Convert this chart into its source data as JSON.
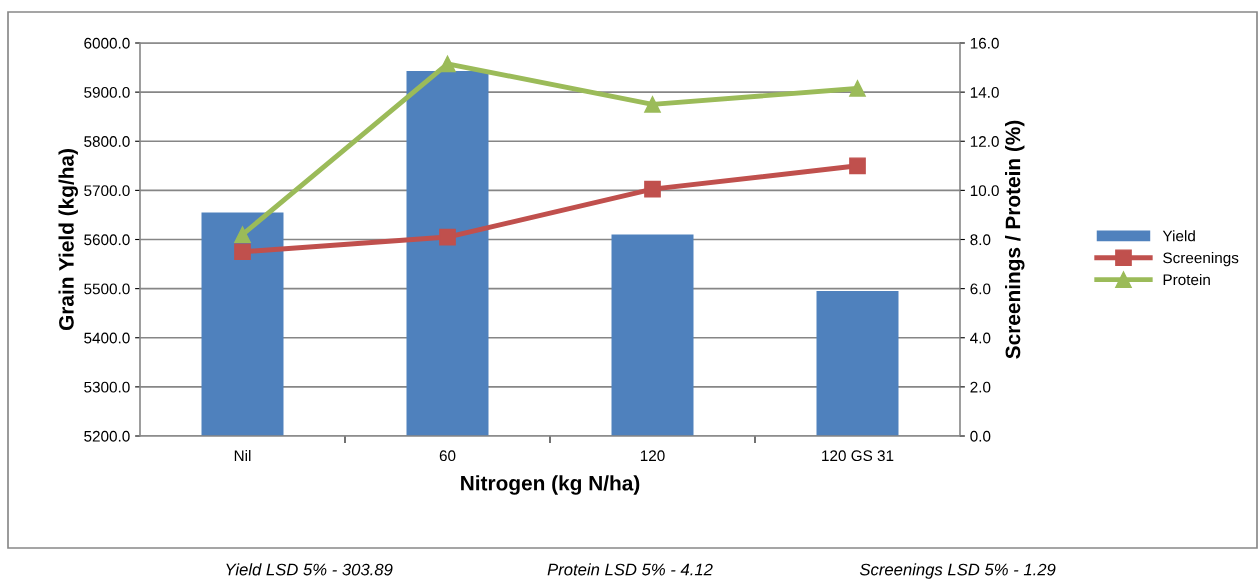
{
  "chart_data": {
    "type": "bar",
    "xlabel": "Nitrogen (kg N/ha)",
    "ylabel": "Grain Yield (kg/ha)",
    "y2label": "Screenings / Protein (%)",
    "categories": [
      "Nil",
      "60",
      "120",
      "120 GS 31"
    ],
    "series": [
      {
        "name": "Yield",
        "color": "#4f81bd",
        "values": [
          5655,
          5943,
          5610,
          5495
        ]
      },
      {
        "name": "Screenings",
        "type": "line",
        "axis": "y2",
        "marker": "square",
        "color": "#c0504d",
        "values": [
          7.5,
          8.1,
          10.05,
          11.0
        ]
      },
      {
        "name": "Protein",
        "type": "line",
        "axis": "y2",
        "marker": "triangle",
        "color": "#9bbb59",
        "values": [
          8.2,
          15.15,
          13.5,
          14.15
        ]
      }
    ],
    "ylim": [
      5200,
      6000
    ],
    "yticks": [
      {
        "value": 5200,
        "label": "5200.0"
      },
      {
        "value": 5300,
        "label": "5300.0"
      },
      {
        "value": 5400,
        "label": "5400.0"
      },
      {
        "value": 5500,
        "label": "5500.0"
      },
      {
        "value": 5600,
        "label": "5600.0"
      },
      {
        "value": 5700,
        "label": "5700.0"
      },
      {
        "value": 5800,
        "label": "5800.0"
      },
      {
        "value": 5900,
        "label": "5900.0"
      },
      {
        "value": 6000,
        "label": "6000.0"
      }
    ],
    "y2lim": [
      0,
      16
    ],
    "y2ticks": [
      {
        "value": 0,
        "label": "0.0"
      },
      {
        "value": 2,
        "label": "2.0"
      },
      {
        "value": 4,
        "label": "4.0"
      },
      {
        "value": 6,
        "label": "6.0"
      },
      {
        "value": 8,
        "label": "8.0"
      },
      {
        "value": 10,
        "label": "10.0"
      },
      {
        "value": 12,
        "label": "12.0"
      },
      {
        "value": 14,
        "label": "14.0"
      },
      {
        "value": 16,
        "label": "16.0"
      }
    ],
    "grid": "y",
    "legend": "right",
    "line_style": "solid",
    "annotations": [
      "Yield LSD 5% - 303.89",
      "Protein LSD 5% - 4.12",
      "Screenings LSD 5% - 1.29"
    ]
  }
}
